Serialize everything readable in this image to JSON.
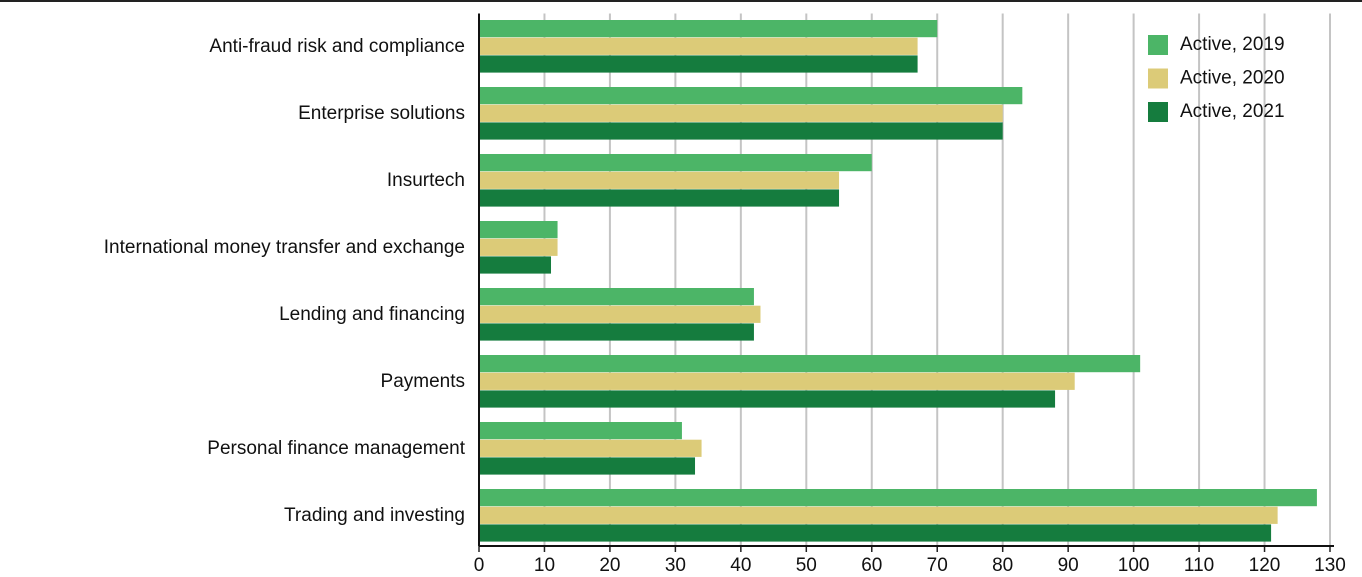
{
  "chart_data": {
    "type": "hbar",
    "categories": [
      "Anti-fraud risk and compliance",
      "Enterprise solutions",
      "Insurtech",
      "International money transfer and exchange",
      "Lending and financing",
      "Payments",
      "Personal finance management",
      "Trading and investing"
    ],
    "series": [
      {
        "name": "Active, 2019",
        "color": "#4cb567",
        "values": [
          70,
          83,
          60,
          12,
          42,
          101,
          31,
          128
        ]
      },
      {
        "name": "Active, 2020",
        "color": "#dccb78",
        "values": [
          67,
          80,
          55,
          12,
          43,
          91,
          34,
          122
        ]
      },
      {
        "name": "Active, 2021",
        "color": "#157c3e",
        "values": [
          67,
          80,
          55,
          11,
          42,
          88,
          33,
          121
        ]
      }
    ],
    "xlim": [
      0,
      130
    ],
    "xticks": [
      0,
      10,
      20,
      30,
      40,
      50,
      60,
      70,
      80,
      90,
      100,
      110,
      120,
      130
    ],
    "grid": true,
    "legend": "top-right"
  }
}
